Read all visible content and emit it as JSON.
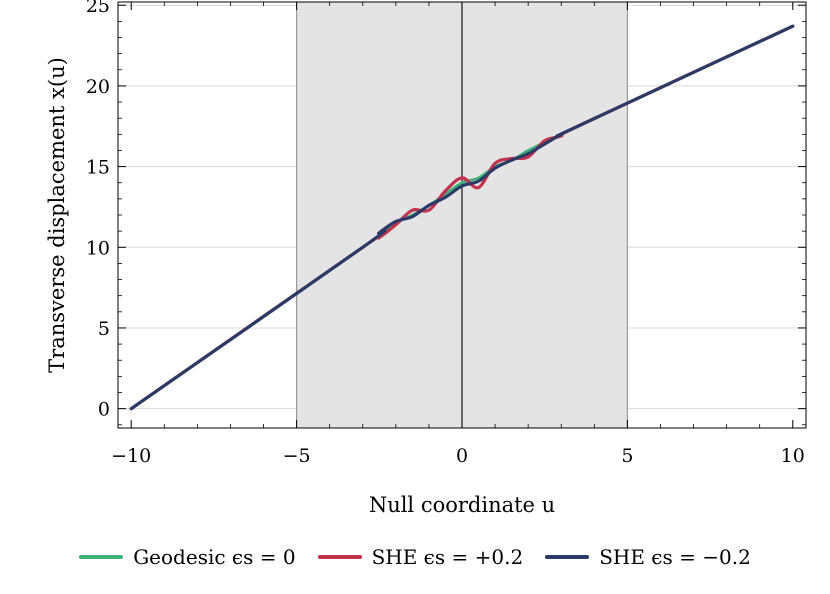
{
  "chart_data": {
    "type": "line",
    "title": "",
    "xlabel": "Null coordinate u",
    "ylabel": "Transverse displacement x(u)",
    "xlim": [
      -10.4,
      10.4
    ],
    "ylim": [
      -1.2,
      25.2
    ],
    "x_ticks": [
      -10,
      -5,
      0,
      5,
      10
    ],
    "y_ticks": [
      0,
      5,
      10,
      15,
      20,
      25
    ],
    "shaded_region": [
      -5,
      5
    ],
    "vertical_line": 0,
    "grid": "horizontal",
    "legend_position": "bottom",
    "series": [
      {
        "name": "Geodesic ϵs = 0",
        "color": "#3cb27a",
        "x": [
          -10,
          -3,
          -2.5,
          -2,
          -1.5,
          -1,
          -0.5,
          0,
          0.5,
          1,
          1.5,
          2,
          2.5,
          3,
          3.5,
          10
        ],
        "y": [
          0,
          10.0,
          10.8,
          11.5,
          12.0,
          12.6,
          13.3,
          14.0,
          14.3,
          15.0,
          15.4,
          16.0,
          16.5,
          17.0,
          17.5,
          23.7
        ]
      },
      {
        "name": "SHE ϵs = +0.2",
        "color": "#c0344d",
        "x": [
          -10,
          -3,
          -2.5,
          -2,
          -1.5,
          -1,
          -0.5,
          0,
          0.5,
          1,
          1.5,
          2,
          2.5,
          3,
          3.5,
          10
        ],
        "y": [
          0,
          10.0,
          10.6,
          11.4,
          12.3,
          12.3,
          13.5,
          14.3,
          13.7,
          15.2,
          15.5,
          15.6,
          16.6,
          16.9,
          17.5,
          23.7
        ]
      },
      {
        "name": "SHE ϵs = −0.2",
        "color": "#2b3a67",
        "x": [
          -10,
          -3,
          -2.5,
          -2,
          -1.5,
          -1,
          -0.5,
          0,
          0.5,
          1,
          1.5,
          2,
          2.5,
          3,
          3.5,
          10
        ],
        "y": [
          0,
          10.0,
          10.9,
          11.6,
          11.9,
          12.6,
          13.1,
          13.8,
          14.1,
          14.9,
          15.4,
          15.8,
          16.4,
          17.0,
          17.5,
          23.7
        ]
      }
    ]
  }
}
